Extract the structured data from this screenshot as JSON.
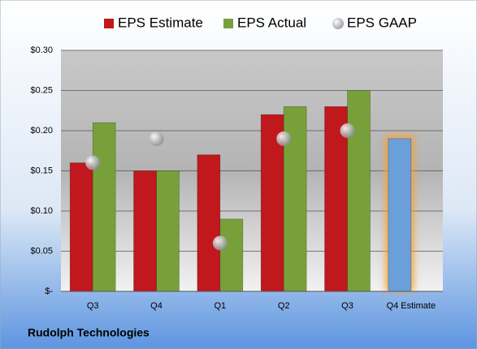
{
  "chart_data": {
    "type": "bar",
    "categories": [
      "Q3",
      "Q4",
      "Q1",
      "Q2",
      "Q3",
      "Q4 Estimate"
    ],
    "series": [
      {
        "name": "EPS Estimate",
        "color": "#c0181c",
        "values": [
          0.16,
          0.15,
          0.17,
          0.22,
          0.23,
          null
        ]
      },
      {
        "name": "EPS Actual",
        "color": "#77a03a",
        "values": [
          0.21,
          0.15,
          0.09,
          0.23,
          0.25,
          null
        ]
      },
      {
        "name": "EPS GAAP",
        "color": "#a8a8b0",
        "marker": "circle",
        "values": [
          0.16,
          0.19,
          0.06,
          0.19,
          0.2,
          null
        ]
      }
    ],
    "forecast": {
      "color": "#6b9fd9",
      "values": [
        null,
        null,
        null,
        null,
        null,
        0.19
      ]
    },
    "ylim": [
      0,
      0.3
    ],
    "yticks": [
      {
        "value": 0,
        "label": "$-"
      },
      {
        "value": 0.05,
        "label": "$0.05"
      },
      {
        "value": 0.1,
        "label": "$0.10"
      },
      {
        "value": 0.15,
        "label": "$0.15"
      },
      {
        "value": 0.2,
        "label": "$0.20"
      },
      {
        "value": 0.25,
        "label": "$0.25"
      },
      {
        "value": 0.3,
        "label": "$0.30"
      }
    ],
    "grid": true,
    "legend": "top",
    "caption": "Rudolph Technologies"
  }
}
